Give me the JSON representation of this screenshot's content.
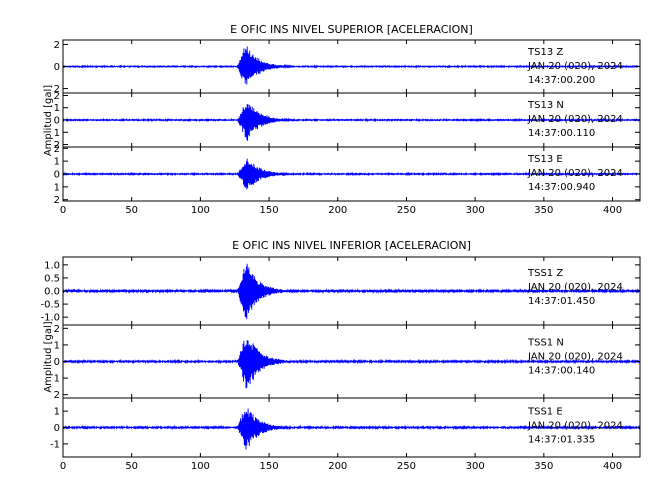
{
  "chart_data": [
    {
      "type": "line",
      "title": "E OFIC INS NIVEL SUPERIOR [ACELERACION]",
      "ylabel": "Amplitud [gal]",
      "xlabel": "",
      "xlim": [
        0,
        420
      ],
      "x_ticks": [
        0,
        50,
        100,
        150,
        200,
        250,
        300,
        350,
        400
      ],
      "grid": false,
      "series_color": "#0000ff",
      "panels": [
        {
          "station": "TS13",
          "component": "Z",
          "date": "JAN 20 (020), 2024",
          "time": "14:37:00.200",
          "ylim": [
            -2.4,
            2.4
          ],
          "y_ticks": [
            -2,
            0,
            2
          ],
          "y_tick_labels": [
            "2",
            "0",
            "2"
          ],
          "event_onset": 127,
          "peak_time": 133,
          "peak_amplitude": 2.1,
          "noise_level": 0.04
        },
        {
          "station": "TS13",
          "component": "N",
          "date": "JAN 20 (020), 2024",
          "time": "14:37:00.110",
          "ylim": [
            -2.2,
            2.2
          ],
          "y_ticks": [
            -2,
            -1,
            0,
            1,
            2
          ],
          "y_tick_labels": [
            "2",
            "1",
            "0",
            "1",
            "2"
          ],
          "event_onset": 127,
          "peak_time": 134,
          "peak_amplitude": 1.8,
          "noise_level": 0.04
        },
        {
          "station": "TS13",
          "component": "E",
          "date": "JAN 20 (020), 2024",
          "time": "14:37:00.940",
          "ylim": [
            -2.1,
            2.1
          ],
          "y_ticks": [
            -2,
            -1,
            0,
            1,
            2
          ],
          "y_tick_labels": [
            "2",
            "1",
            "0",
            "1",
            "2"
          ],
          "event_onset": 127,
          "peak_time": 134,
          "peak_amplitude": 1.4,
          "noise_level": 0.04
        }
      ]
    },
    {
      "type": "line",
      "title": "E OFIC INS NIVEL INFERIOR [ACELERACION]",
      "ylabel": "Amplitud [gal]",
      "xlabel": "",
      "xlim": [
        0,
        420
      ],
      "x_ticks": [
        0,
        50,
        100,
        150,
        200,
        250,
        300,
        350,
        400
      ],
      "grid": false,
      "series_color": "#0000ff",
      "panels": [
        {
          "station": "TSS1",
          "component": "Z",
          "date": "JAN 20 (020), 2024",
          "time": "14:37:01.450",
          "ylim": [
            -1.3,
            1.3
          ],
          "y_ticks": [
            -1.0,
            -0.5,
            0.0,
            0.5,
            1.0
          ],
          "y_tick_labels": [
            "-1.0",
            "-0.5",
            "0.0",
            "0.5",
            "1.0"
          ],
          "event_onset": 127,
          "peak_time": 133,
          "peak_amplitude": 1.2,
          "noise_level": 0.03
        },
        {
          "station": "TSS1",
          "component": "N",
          "date": "JAN 20 (020), 2024",
          "time": "14:37:00.140",
          "ylim": [
            -2.2,
            2.2
          ],
          "y_ticks": [
            -2,
            -1,
            0,
            1,
            2
          ],
          "y_tick_labels": [
            "2",
            "1",
            "0",
            "1",
            "2"
          ],
          "event_onset": 127,
          "peak_time": 134,
          "peak_amplitude": 1.9,
          "noise_level": 0.04
        },
        {
          "station": "TSS1",
          "component": "E",
          "date": "JAN 20 (020), 2024",
          "time": "14:37:01.335",
          "ylim": [
            -1.8,
            1.8
          ],
          "y_ticks": [
            -1,
            0,
            1
          ],
          "y_tick_labels": [
            "-1",
            "0",
            "1"
          ],
          "event_onset": 127,
          "peak_time": 133,
          "peak_amplitude": 1.5,
          "noise_level": 0.04
        }
      ]
    }
  ]
}
